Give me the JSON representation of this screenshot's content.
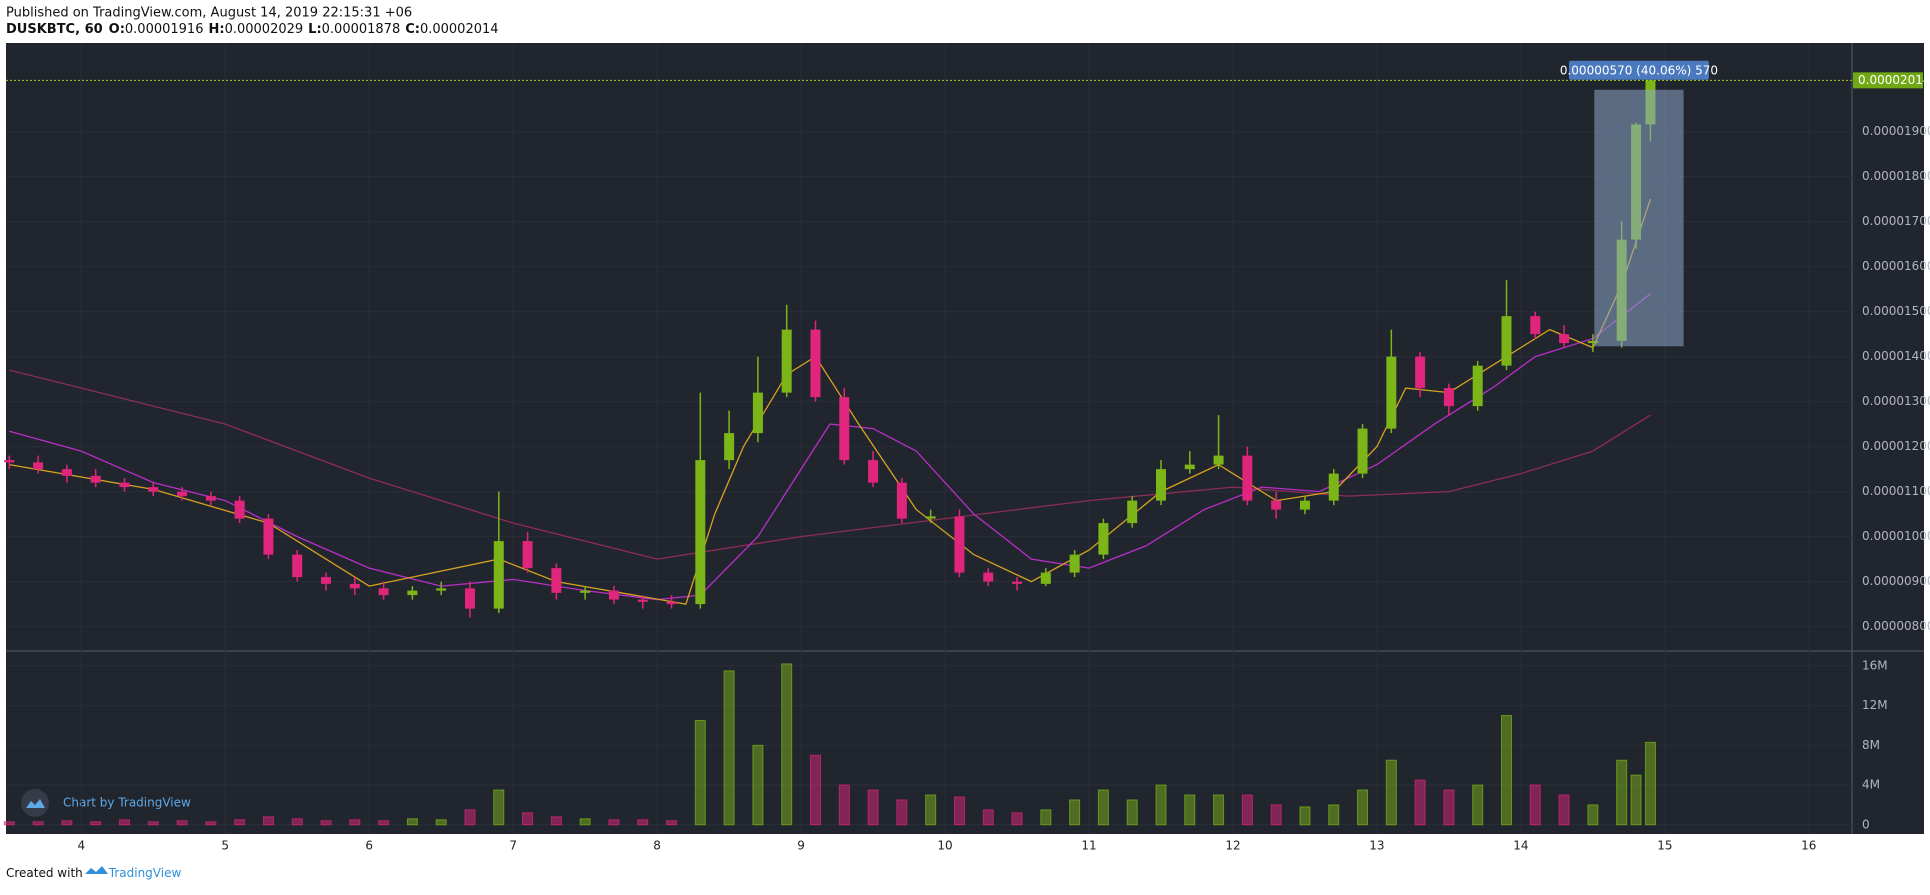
{
  "header": {
    "published": "Published on TradingView.com, August 14, 2019 22:15:31 +06",
    "symbol": "DUSKBTC, 60",
    "ohlc_labels": [
      "O:",
      "H:",
      "L:",
      "C:"
    ]
  },
  "footer": {
    "created": "Created with",
    "brand": "TradingView"
  },
  "chart_data": {
    "type": "candlestick",
    "watermark": "Chart by TradingView",
    "x": [
      3.5,
      3.7,
      3.9,
      4.1,
      4.3,
      4.5,
      4.7,
      4.9,
      5.1,
      5.3,
      5.5,
      5.7,
      5.9,
      6.1,
      6.3,
      6.5,
      6.7,
      6.9,
      7.1,
      7.3,
      7.5,
      7.7,
      7.9,
      8.1,
      8.3,
      8.5,
      8.7,
      8.9,
      9.1,
      9.3,
      9.5,
      9.7,
      9.9,
      10.1,
      10.3,
      10.5,
      10.7,
      10.9,
      11.1,
      11.3,
      11.5,
      11.7,
      11.9,
      12.1,
      12.3,
      12.5,
      12.7,
      12.9,
      13.1,
      13.3,
      13.5,
      13.7,
      13.9,
      14.1,
      14.3,
      14.5,
      14.7,
      14.8,
      14.9
    ],
    "open": [
      1.17e-05,
      1.165e-05,
      1.15e-05,
      1.135e-05,
      1.12e-05,
      1.11e-05,
      1.1e-05,
      1.09e-05,
      1.08e-05,
      1.04e-05,
      9.6e-06,
      9.1e-06,
      8.95e-06,
      8.85e-06,
      8.7e-06,
      8.8e-06,
      8.85e-06,
      8.4e-06,
      9.9e-06,
      9.3e-06,
      8.75e-06,
      8.8e-06,
      8.6e-06,
      8.55e-06,
      8.5e-06,
      1.17e-05,
      1.23e-05,
      1.32e-05,
      1.46e-05,
      1.31e-05,
      1.17e-05,
      1.12e-05,
      1.04e-05,
      1.045e-05,
      9.2e-06,
      9e-06,
      8.95e-06,
      9.2e-06,
      9.6e-06,
      1.03e-05,
      1.08e-05,
      1.15e-05,
      1.16e-05,
      1.18e-05,
      1.08e-05,
      1.06e-05,
      1.08e-05,
      1.14e-05,
      1.24e-05,
      1.4e-05,
      1.33e-05,
      1.29e-05,
      1.38e-05,
      1.49e-05,
      1.45e-05,
      1.43e-05,
      1.435e-05,
      1.66e-05,
      1.916e-05
    ],
    "high": [
      1.18e-05,
      1.18e-05,
      1.16e-05,
      1.15e-05,
      1.13e-05,
      1.12e-05,
      1.11e-05,
      1.1e-05,
      1.09e-05,
      1.05e-05,
      9.7e-06,
      9.2e-06,
      9.1e-06,
      9e-06,
      8.9e-06,
      9e-06,
      9e-06,
      1.1e-05,
      1.01e-05,
      9.4e-06,
      8.9e-06,
      8.9e-06,
      8.7e-06,
      8.7e-06,
      1.32e-05,
      1.28e-05,
      1.4e-05,
      1.515e-05,
      1.48e-05,
      1.33e-05,
      1.19e-05,
      1.13e-05,
      1.06e-05,
      1.06e-05,
      9.3e-06,
      9.1e-06,
      9.3e-06,
      9.7e-06,
      1.04e-05,
      1.09e-05,
      1.17e-05,
      1.19e-05,
      1.27e-05,
      1.2e-05,
      1.1e-05,
      1.09e-05,
      1.15e-05,
      1.25e-05,
      1.46e-05,
      1.41e-05,
      1.34e-05,
      1.39e-05,
      1.57e-05,
      1.5e-05,
      1.47e-05,
      1.45e-05,
      1.7e-05,
      1.92e-05,
      2.029e-05
    ],
    "low": [
      1.15e-05,
      1.14e-05,
      1.12e-05,
      1.11e-05,
      1.1e-05,
      1.09e-05,
      1.08e-05,
      1.07e-05,
      1.03e-05,
      9.5e-06,
      9e-06,
      8.8e-06,
      8.7e-06,
      8.6e-06,
      8.6e-06,
      8.7e-06,
      8.2e-06,
      8.3e-06,
      9.2e-06,
      8.6e-06,
      8.6e-06,
      8.5e-06,
      8.4e-06,
      8.4e-06,
      8.4e-06,
      1.15e-05,
      1.21e-05,
      1.31e-05,
      1.3e-05,
      1.16e-05,
      1.11e-05,
      1.03e-05,
      1.03e-05,
      9.1e-06,
      8.9e-06,
      8.8e-06,
      8.9e-06,
      9.1e-06,
      9.5e-06,
      1.02e-05,
      1.07e-05,
      1.14e-05,
      1.15e-05,
      1.07e-05,
      1.04e-05,
      1.05e-05,
      1.07e-05,
      1.13e-05,
      1.23e-05,
      1.31e-05,
      1.27e-05,
      1.28e-05,
      1.37e-05,
      1.44e-05,
      1.42e-05,
      1.41e-05,
      1.42e-05,
      1.64e-05,
      1.878e-05
    ],
    "close": [
      1.165e-05,
      1.15e-05,
      1.135e-05,
      1.12e-05,
      1.11e-05,
      1.1e-05,
      1.09e-05,
      1.08e-05,
      1.04e-05,
      9.6e-06,
      9.1e-06,
      8.95e-06,
      8.85e-06,
      8.7e-06,
      8.8e-06,
      8.85e-06,
      8.4e-06,
      9.9e-06,
      9.3e-06,
      8.75e-06,
      8.8e-06,
      8.6e-06,
      8.55e-06,
      8.5e-06,
      1.17e-05,
      1.23e-05,
      1.32e-05,
      1.46e-05,
      1.31e-05,
      1.17e-05,
      1.12e-05,
      1.04e-05,
      1.045e-05,
      9.2e-06,
      9e-06,
      8.95e-06,
      9.2e-06,
      9.6e-06,
      1.03e-05,
      1.08e-05,
      1.15e-05,
      1.16e-05,
      1.18e-05,
      1.08e-05,
      1.06e-05,
      1.08e-05,
      1.14e-05,
      1.24e-05,
      1.4e-05,
      1.33e-05,
      1.29e-05,
      1.38e-05,
      1.49e-05,
      1.45e-05,
      1.43e-05,
      1.435e-05,
      1.66e-05,
      1.916e-05,
      2.014e-05
    ],
    "volume": [
      300000,
      300000,
      400000,
      300000,
      500000,
      300000,
      400000,
      300000,
      500000,
      800000,
      600000,
      400000,
      500000,
      400000,
      600000,
      500000,
      1500000,
      3500000,
      1200000,
      800000,
      600000,
      500000,
      500000,
      400000,
      10500000,
      15500000,
      8000000,
      16200000,
      7000000,
      4000000,
      3500000,
      2500000,
      3000000,
      2800000,
      1500000,
      1200000,
      1500000,
      2500000,
      3500000,
      2500000,
      4000000,
      3000000,
      3000000,
      3000000,
      2000000,
      1800000,
      2000000,
      3500000,
      6500000,
      4500000,
      3500000,
      4000000,
      11000000,
      4000000,
      3000000,
      2000000,
      6500000,
      5000000,
      8300000
    ],
    "up_color": "#7cb518",
    "down_color": "#e0257c",
    "overlays": [
      {
        "color": "#8c2d55",
        "x": [
          3.5,
          5,
          6,
          7,
          8,
          9,
          10,
          11,
          12,
          12.8,
          13.5,
          14,
          14.5,
          14.9
        ],
        "values": [
          1.37e-05,
          1.25e-05,
          1.13e-05,
          1.03e-05,
          9.5e-06,
          1e-05,
          1.04e-05,
          1.08e-05,
          1.11e-05,
          1.09e-05,
          1.1e-05,
          1.14e-05,
          1.19e-05,
          1.27e-05
        ]
      },
      {
        "color": "#b82fc8",
        "x": [
          3.5,
          4,
          4.5,
          5,
          5.5,
          6,
          6.5,
          7,
          7.5,
          8,
          8.3,
          8.7,
          9,
          9.2,
          9.5,
          9.8,
          10.2,
          10.6,
          11,
          11.4,
          11.8,
          12.2,
          12.6,
          13,
          13.4,
          13.8,
          14.1,
          14.5,
          14.9
        ],
        "values": [
          1.234e-05,
          1.19e-05,
          1.12e-05,
          1.08e-05,
          1e-05,
          9.3e-06,
          8.9e-06,
          9.05e-06,
          8.8e-06,
          8.6e-06,
          8.7e-06,
          1e-05,
          1.15e-05,
          1.25e-05,
          1.24e-05,
          1.19e-05,
          1.05e-05,
          9.5e-06,
          9.3e-06,
          9.8e-06,
          1.06e-05,
          1.11e-05,
          1.1e-05,
          1.16e-05,
          1.25e-05,
          1.33e-05,
          1.4e-05,
          1.44e-05,
          1.54e-05
        ]
      },
      {
        "color": "#d6a21e",
        "x": [
          3.5,
          4.5,
          5.3,
          6,
          6.9,
          7.3,
          8.2,
          8.4,
          8.6,
          8.9,
          9.1,
          9.4,
          9.8,
          10.2,
          10.6,
          11,
          11.5,
          11.9,
          12.3,
          12.7,
          13,
          13.2,
          13.5,
          13.9,
          14.2,
          14.5,
          14.7,
          14.9
        ],
        "values": [
          1.16e-05,
          1.105e-05,
          1.03e-05,
          8.9e-06,
          9.5e-06,
          9e-06,
          8.5e-06,
          1.05e-05,
          1.2e-05,
          1.36e-05,
          1.4e-05,
          1.25e-05,
          1.06e-05,
          9.6e-06,
          9e-06,
          9.7e-06,
          1.1e-05,
          1.16e-05,
          1.08e-05,
          1.1e-05,
          1.2e-05,
          1.33e-05,
          1.32e-05,
          1.4e-05,
          1.46e-05,
          1.42e-05,
          1.56e-05,
          1.75e-05
        ]
      }
    ],
    "measure": {
      "x": [
        14.51,
        15.13
      ],
      "range": [
        1.423e-05,
        1.993e-05
      ],
      "label": "0.00000570 (40.06%) 570"
    },
    "xlim": [
      3.477,
      16.3
    ],
    "xticks": [
      4,
      5,
      6,
      7,
      8,
      9,
      10,
      11,
      12,
      13,
      14,
      15,
      16
    ],
    "ylim": [
      7.48e-06,
      2.097e-05
    ],
    "yticks": [
      {
        "value": 8e-06,
        "label": "0.00000800"
      },
      {
        "value": 9e-06,
        "label": "0.00000900"
      },
      {
        "value": 1e-05,
        "label": "0.00001000"
      },
      {
        "value": 1.1e-05,
        "label": "0.00001100"
      },
      {
        "value": 1.2e-05,
        "label": "0.00001200"
      },
      {
        "value": 1.3e-05,
        "label": "0.00001300"
      },
      {
        "value": 1.4e-05,
        "label": "0.00001400"
      },
      {
        "value": 1.5e-05,
        "label": "0.00001500"
      },
      {
        "value": 1.6e-05,
        "label": "0.00001600"
      },
      {
        "value": 1.7e-05,
        "label": "0.00001700"
      },
      {
        "value": 1.8e-05,
        "label": "0.00001800"
      },
      {
        "value": 1.9e-05,
        "label": "0.00001900"
      }
    ],
    "y2lim": [
      -930000,
      17500000
    ],
    "y2ticks": [
      0,
      {
        "value": 4000000,
        "label": "4M"
      },
      {
        "value": 8000000,
        "label": "8M"
      },
      {
        "value": 12000000,
        "label": "12M"
      },
      {
        "value": 16000000,
        "label": "16M"
      }
    ],
    "grid": true
  }
}
